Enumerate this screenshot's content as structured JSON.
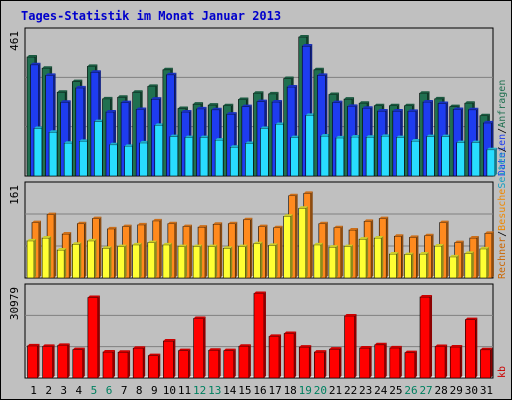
{
  "title": "Tages-Statistik im Monat Januar 2013",
  "chart_data": [
    {
      "type": "bar",
      "panel": "top",
      "ymax_label": "461",
      "ylim": [
        0,
        461
      ],
      "categories": [
        "1",
        "2",
        "3",
        "4",
        "5",
        "6",
        "7",
        "8",
        "9",
        "10",
        "11",
        "12",
        "13",
        "14",
        "15",
        "16",
        "17",
        "18",
        "19",
        "20",
        "21",
        "22",
        "23",
        "24",
        "25",
        "26",
        "27",
        "28",
        "29",
        "30",
        "31"
      ],
      "category_colors": {
        "weekend": "#008060",
        "weekday": "#000000"
      },
      "weekend_days": [
        "5",
        "6",
        "12",
        "13",
        "19",
        "20",
        "26",
        "27"
      ],
      "series": [
        {
          "name": "Anfragen",
          "color": "#207050",
          "values": [
            381,
            345,
            268,
            302,
            351,
            247,
            252,
            268,
            287,
            340,
            216,
            230,
            227,
            225,
            245,
            265,
            263,
            312,
            445,
            340,
            261,
            246,
            233,
            225,
            225,
            225,
            265,
            247,
            222,
            233,
            193
          ]
        },
        {
          "name": "Dateien",
          "color": "#1e3cf0",
          "values": [
            356,
            322,
            236,
            282,
            332,
            205,
            235,
            213,
            246,
            324,
            205,
            215,
            212,
            198,
            222,
            238,
            237,
            285,
            416,
            322,
            235,
            223,
            217,
            208,
            208,
            207,
            237,
            232,
            213,
            212,
            170
          ]
        },
        {
          "name": "Seiten",
          "color": "#28ddff",
          "values": [
            152,
            140,
            105,
            111,
            174,
            100,
            95,
            106,
            162,
            126,
            123,
            123,
            115,
            92,
            104,
            152,
            165,
            123,
            194,
            128,
            122,
            125,
            124,
            127,
            123,
            112,
            126,
            126,
            107,
            107,
            84
          ]
        }
      ],
      "legend": [
        "Dateien",
        "/",
        "Anfragen"
      ]
    },
    {
      "type": "bar",
      "panel": "middle",
      "ymax_label": "161",
      "ylim": [
        0,
        161
      ],
      "series": [
        {
          "name": "Besuche",
          "color": "#ff8a1e",
          "values": [
            97,
            111,
            77,
            95,
            104,
            86,
            90,
            93,
            100,
            95,
            90,
            89,
            94,
            95,
            102,
            90,
            88,
            144,
            148,
            95,
            88,
            84,
            99,
            104,
            73,
            71,
            74,
            97,
            62,
            70,
            78
          ]
        },
        {
          "name": "Rechner",
          "color": "#ffff33",
          "values": [
            65,
            70,
            49,
            59,
            65,
            52,
            55,
            58,
            62,
            58,
            55,
            55,
            55,
            52,
            55,
            60,
            57,
            108,
            122,
            58,
            54,
            55,
            68,
            70,
            42,
            41,
            42,
            56,
            37,
            43,
            51
          ]
        }
      ],
      "legend": [
        "Rechner",
        "/",
        "Besuche",
        "Seiten",
        "/"
      ]
    },
    {
      "type": "bar",
      "panel": "bottom",
      "ymax_label": "30979",
      "ylim": [
        0,
        30979
      ],
      "series": [
        {
          "name": "kb",
          "color": "#ff0000",
          "values": [
            11060,
            10870,
            11230,
            9760,
            27690,
            8950,
            8850,
            10250,
            7700,
            12720,
            9410,
            20490,
            9540,
            9410,
            10920,
            29100,
            14310,
            15320,
            10640,
            8920,
            9930,
            21360,
            10320,
            11430,
            10350,
            8730,
            27880,
            10860,
            10690,
            20080,
            9720
          ]
        }
      ],
      "legend": [
        "kb"
      ]
    }
  ]
}
